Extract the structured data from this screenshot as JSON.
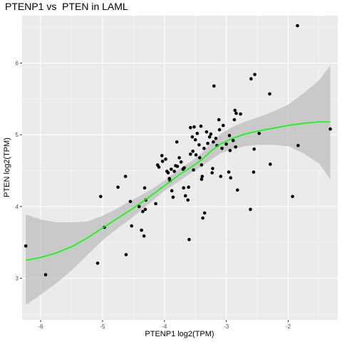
{
  "chart_data": {
    "type": "scatter",
    "title": "PTENP1 vs  PTEN in LAML",
    "xlabel": "PTENP1 log2(TPM)",
    "ylabel": "PTEN log2(TPM)",
    "x_ticks": [
      -6,
      -5,
      -4,
      -3,
      -2
    ],
    "y_ticks": [
      3,
      4,
      5,
      6
    ],
    "xlim": [
      -6.3,
      -1.2
    ],
    "ylim": [
      2.42,
      6.66
    ],
    "grid": true,
    "colors": {
      "panel": "#ebebeb",
      "grid": "#ffffff",
      "points": "#000000",
      "smooth_line": "#00ff00",
      "confidence_band": "#bebebe"
    },
    "points": [
      [
        -6.24,
        3.45
      ],
      [
        -5.92,
        3.05
      ],
      [
        -5.08,
        3.21
      ],
      [
        -5.03,
        4.14
      ],
      [
        -4.97,
        3.71
      ],
      [
        -4.75,
        4.27
      ],
      [
        -4.63,
        4.42
      ],
      [
        -4.62,
        3.33
      ],
      [
        -4.55,
        4.07
      ],
      [
        -4.53,
        3.73
      ],
      [
        -4.41,
        4.0
      ],
      [
        -4.37,
        3.67
      ],
      [
        -4.35,
        3.93
      ],
      [
        -4.33,
        3.59
      ],
      [
        -4.32,
        4.26
      ],
      [
        -4.3,
        4.09
      ],
      [
        -4.31,
        3.96
      ],
      [
        -4.14,
        4.04
      ],
      [
        -4.11,
        4.58
      ],
      [
        -4.09,
        4.55
      ],
      [
        -4.04,
        4.71
      ],
      [
        -4.03,
        4.63
      ],
      [
        -3.98,
        4.66
      ],
      [
        -3.96,
        4.49
      ],
      [
        -3.94,
        4.47
      ],
      [
        -3.92,
        4.39
      ],
      [
        -3.91,
        4.36
      ],
      [
        -3.89,
        4.52
      ],
      [
        -3.88,
        4.22
      ],
      [
        -3.86,
        4.13
      ],
      [
        -3.84,
        4.49
      ],
      [
        -3.82,
        4.57
      ],
      [
        -3.8,
        4.9
      ],
      [
        -3.79,
        4.56
      ],
      [
        -3.76,
        4.68
      ],
      [
        -3.73,
        4.62
      ],
      [
        -3.7,
        4.52
      ],
      [
        -3.69,
        4.26
      ],
      [
        -3.68,
        4.54
      ],
      [
        -3.66,
        4.15
      ],
      [
        -3.62,
        4.09
      ],
      [
        -3.61,
        4.27
      ],
      [
        -3.58,
        5.1
      ],
      [
        -3.55,
        4.97
      ],
      [
        -3.54,
        4.77
      ],
      [
        -3.53,
        4.51
      ],
      [
        -3.52,
        5.11
      ],
      [
        -3.5,
        4.93
      ],
      [
        -3.49,
        4.72
      ],
      [
        -3.47,
        5.02
      ],
      [
        -3.44,
        4.86
      ],
      [
        -3.43,
        4.68
      ],
      [
        -3.41,
        5.12
      ],
      [
        -3.4,
        4.58
      ],
      [
        -3.39,
        4.42
      ],
      [
        -3.38,
        3.84
      ],
      [
        -3.36,
        4.81
      ],
      [
        -3.35,
        3.91
      ],
      [
        -3.32,
        5.04
      ],
      [
        -3.3,
        4.88
      ],
      [
        -3.27,
        4.97
      ],
      [
        -3.25,
        5.01
      ],
      [
        -3.23,
        4.47
      ],
      [
        -3.22,
        4.53
      ],
      [
        -3.21,
        4.9
      ],
      [
        -3.2,
        5.68
      ],
      [
        -3.17,
        4.95
      ],
      [
        -3.15,
        4.85
      ],
      [
        -3.12,
        5.21
      ],
      [
        -3.11,
        5.07
      ],
      [
        -3.09,
        4.42
      ],
      [
        -3.07,
        4.81
      ],
      [
        -3.05,
        5.13
      ],
      [
        -3.0,
        4.87
      ],
      [
        -2.96,
        4.48
      ],
      [
        -2.95,
        4.99
      ],
      [
        -2.94,
        4.78
      ],
      [
        -2.93,
        4.4
      ],
      [
        -2.89,
        4.92
      ],
      [
        -2.87,
        5.21
      ],
      [
        -2.86,
        5.34
      ],
      [
        -2.85,
        4.83
      ],
      [
        -2.84,
        5.3
      ],
      [
        -2.82,
        4.23
      ],
      [
        -2.77,
        5.29
      ],
      [
        -2.61,
        3.96
      ],
      [
        -2.6,
        5.78
      ],
      [
        -2.56,
        4.48
      ],
      [
        -2.55,
        4.8
      ],
      [
        -2.54,
        5.84
      ],
      [
        -2.47,
        5.02
      ],
      [
        -2.3,
        5.57
      ],
      [
        -2.29,
        4.59
      ],
      [
        -1.93,
        4.14
      ],
      [
        -1.85,
        6.52
      ],
      [
        -1.84,
        4.85
      ],
      [
        -1.32,
        5.08
      ],
      [
        -3.6,
        3.54
      ],
      [
        -3.4,
        4.38
      ],
      [
        -3.58,
        4.73
      ]
    ],
    "smooth_curve": [
      [
        -6.24,
        3.25
      ],
      [
        -6.0,
        3.29
      ],
      [
        -5.75,
        3.35
      ],
      [
        -5.5,
        3.44
      ],
      [
        -5.25,
        3.56
      ],
      [
        -5.0,
        3.7
      ],
      [
        -4.75,
        3.84
      ],
      [
        -4.5,
        3.98
      ],
      [
        -4.25,
        4.13
      ],
      [
        -4.0,
        4.29
      ],
      [
        -3.75,
        4.45
      ],
      [
        -3.55,
        4.56
      ],
      [
        -3.4,
        4.65
      ],
      [
        -3.25,
        4.77
      ],
      [
        -3.1,
        4.87
      ],
      [
        -2.9,
        4.95
      ],
      [
        -2.7,
        5.01
      ],
      [
        -2.5,
        5.05
      ],
      [
        -2.25,
        5.09
      ],
      [
        -2.0,
        5.13
      ],
      [
        -1.75,
        5.16
      ],
      [
        -1.5,
        5.18
      ],
      [
        -1.32,
        5.18
      ]
    ],
    "band_upper": [
      [
        -6.24,
        3.89
      ],
      [
        -6.0,
        3.82
      ],
      [
        -5.75,
        3.78
      ],
      [
        -5.5,
        3.78
      ],
      [
        -5.25,
        3.79
      ],
      [
        -5.0,
        3.87
      ],
      [
        -4.75,
        3.98
      ],
      [
        -4.5,
        4.1
      ],
      [
        -4.25,
        4.22
      ],
      [
        -4.0,
        4.36
      ],
      [
        -3.75,
        4.53
      ],
      [
        -3.55,
        4.64
      ],
      [
        -3.4,
        4.74
      ],
      [
        -3.25,
        4.88
      ],
      [
        -3.1,
        5.01
      ],
      [
        -2.9,
        5.11
      ],
      [
        -2.7,
        5.18
      ],
      [
        -2.5,
        5.24
      ],
      [
        -2.25,
        5.32
      ],
      [
        -2.0,
        5.42
      ],
      [
        -1.75,
        5.58
      ],
      [
        -1.5,
        5.76
      ],
      [
        -1.32,
        5.97
      ]
    ],
    "band_lower": [
      [
        -6.24,
        2.63
      ],
      [
        -6.0,
        2.77
      ],
      [
        -5.75,
        2.93
      ],
      [
        -5.5,
        3.11
      ],
      [
        -5.25,
        3.32
      ],
      [
        -5.0,
        3.53
      ],
      [
        -4.75,
        3.7
      ],
      [
        -4.5,
        3.86
      ],
      [
        -4.25,
        4.04
      ],
      [
        -4.0,
        4.22
      ],
      [
        -3.75,
        4.36
      ],
      [
        -3.55,
        4.48
      ],
      [
        -3.4,
        4.56
      ],
      [
        -3.25,
        4.65
      ],
      [
        -3.1,
        4.74
      ],
      [
        -2.9,
        4.8
      ],
      [
        -2.7,
        4.84
      ],
      [
        -2.5,
        4.86
      ],
      [
        -2.25,
        4.86
      ],
      [
        -2.0,
        4.84
      ],
      [
        -1.75,
        4.74
      ],
      [
        -1.5,
        4.6
      ],
      [
        -1.32,
        4.38
      ]
    ]
  }
}
